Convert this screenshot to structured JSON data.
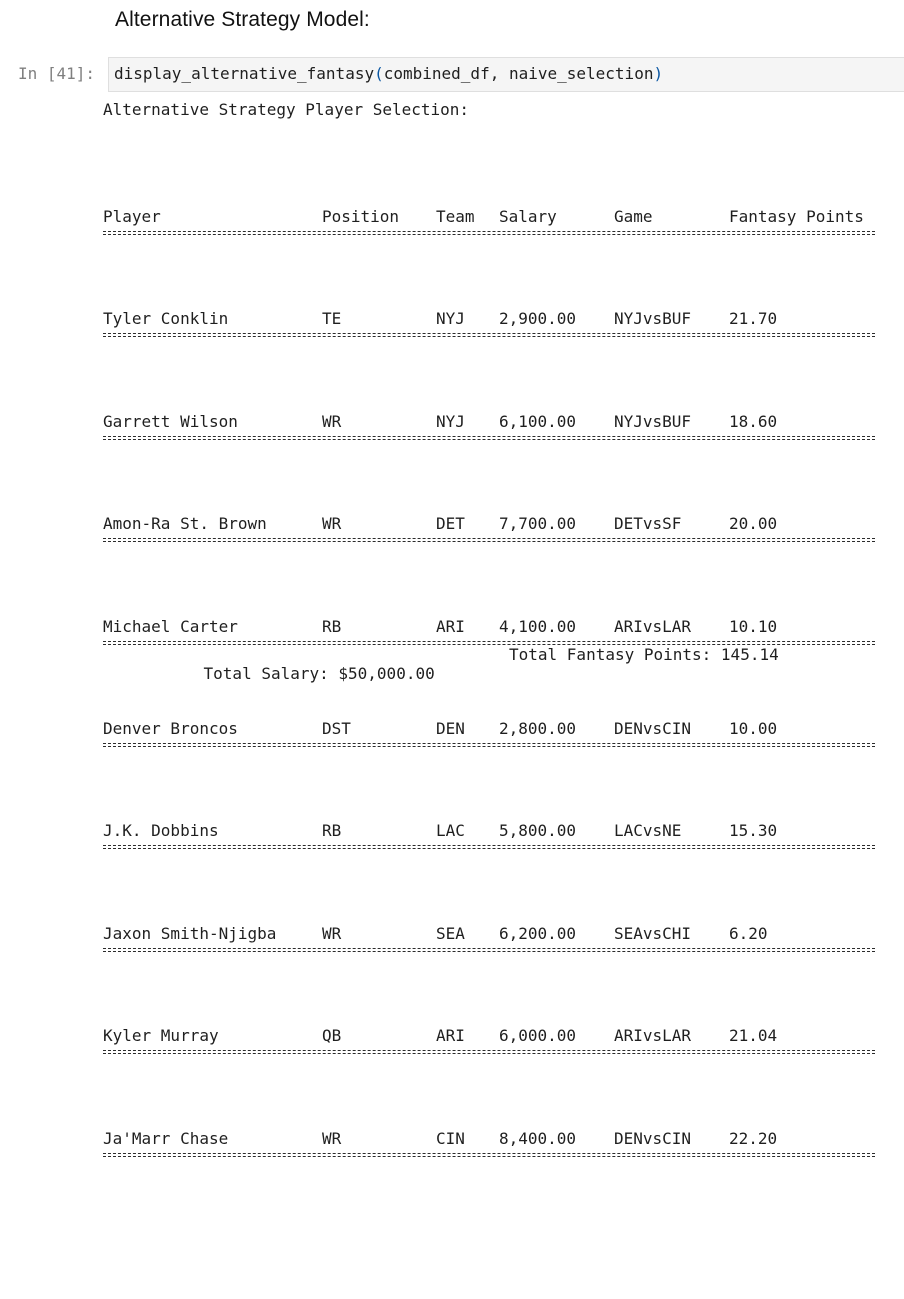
{
  "notebook": {
    "heading": "Alternative Strategy Model:",
    "prompt": "In [41]:",
    "code": {
      "function": "display_alternative_fantasy",
      "open_paren": "(",
      "args": "combined_df, naive_selection",
      "close_paren": ")"
    }
  },
  "output": {
    "title": "Alternative Strategy Player Selection:",
    "columns": {
      "player": "Player",
      "position": "Position",
      "team": "Team",
      "salary": "Salary",
      "game": "Game",
      "points": "Fantasy Points"
    },
    "rows": [
      {
        "player": "Tyler Conklin",
        "position": "TE",
        "team": "NYJ",
        "salary": "2,900.00",
        "game": "NYJvsBUF",
        "points": "21.70"
      },
      {
        "player": "Garrett Wilson",
        "position": "WR",
        "team": "NYJ",
        "salary": "6,100.00",
        "game": "NYJvsBUF",
        "points": "18.60"
      },
      {
        "player": "Amon-Ra St. Brown",
        "position": "WR",
        "team": "DET",
        "salary": "7,700.00",
        "game": "DETvsSF",
        "points": "20.00"
      },
      {
        "player": "Michael Carter",
        "position": "RB",
        "team": "ARI",
        "salary": "4,100.00",
        "game": "ARIvsLAR",
        "points": "10.10"
      },
      {
        "player": "Denver Broncos",
        "position": "DST",
        "team": "DEN",
        "salary": "2,800.00",
        "game": "DENvsCIN",
        "points": "10.00"
      },
      {
        "player": "J.K. Dobbins",
        "position": "RB",
        "team": "LAC",
        "salary": "5,800.00",
        "game": "LACvsNE",
        "points": "15.30"
      },
      {
        "player": "Jaxon Smith-Njigba",
        "position": "WR",
        "team": "SEA",
        "salary": "6,200.00",
        "game": "SEAvsCHI",
        "points": "6.20"
      },
      {
        "player": "Kyler Murray",
        "position": "QB",
        "team": "ARI",
        "salary": "6,000.00",
        "game": "ARIvsLAR",
        "points": "21.04"
      },
      {
        "player": "Ja'Marr Chase",
        "position": "WR",
        "team": "CIN",
        "salary": "8,400.00",
        "game": "DENvsCIN",
        "points": "22.20"
      }
    ],
    "totals": {
      "salary": "Total Salary: $50,000.00",
      "points": "Total Fantasy Points: 145.14"
    }
  }
}
